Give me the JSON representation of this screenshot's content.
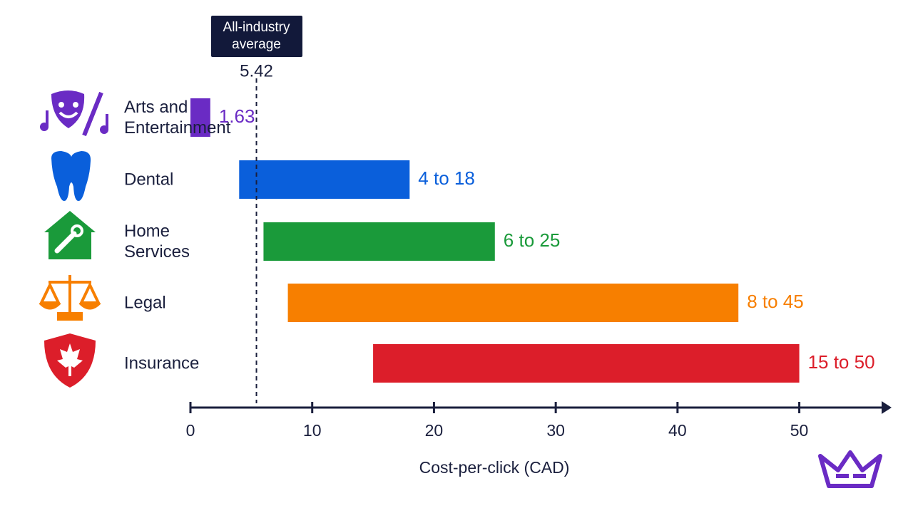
{
  "chart_data": {
    "type": "range-bar",
    "categories": [
      "Arts and Entertainment",
      "Dental",
      "Home Services",
      "Legal",
      "Insurance"
    ],
    "low": [
      null,
      4,
      6,
      8,
      15
    ],
    "high": [
      1.63,
      18,
      25,
      45,
      50
    ],
    "value_labels": [
      "1.63",
      "4 to 18",
      "6 to 25",
      "8 to 45",
      "15 to 50"
    ],
    "colors": [
      "#6a2bc4",
      "#0a5fdb",
      "#1a9a3a",
      "#f77f00",
      "#dc1e2a"
    ],
    "reference_line": {
      "label": "All-industry average",
      "value": 5.42
    },
    "xlabel": "Cost-per-click (CAD)",
    "xlim": [
      0,
      56
    ],
    "xticks": [
      0,
      10,
      20,
      30,
      40,
      50
    ]
  }
}
